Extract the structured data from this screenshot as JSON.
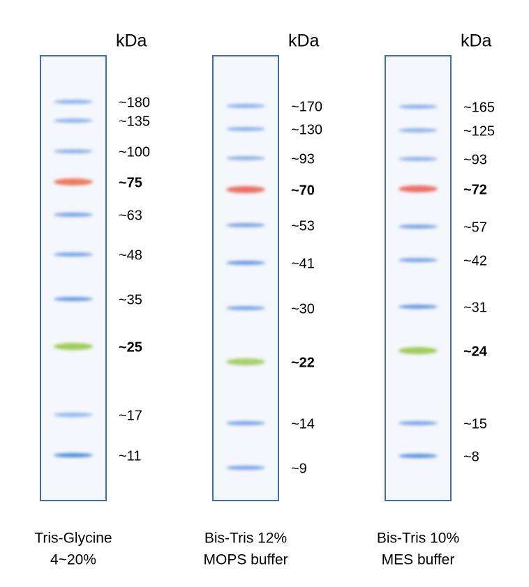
{
  "lanes": [
    {
      "unit": "kDa",
      "caption": [
        "Tris-Glycine",
        "4~20%"
      ],
      "bands": [
        {
          "label": "~180",
          "color": "#8fb3e6",
          "bold": false
        },
        {
          "label": "~135",
          "color": "#8fb3e6",
          "bold": false
        },
        {
          "label": "~100",
          "color": "#8fb3e6",
          "bold": false
        },
        {
          "label": "~75",
          "color": "#ec7a5c",
          "bold": true
        },
        {
          "label": "~63",
          "color": "#7aa5e3",
          "bold": false
        },
        {
          "label": "~48",
          "color": "#7aa5e3",
          "bold": false
        },
        {
          "label": "~35",
          "color": "#6a9ae0",
          "bold": false
        },
        {
          "label": "~25",
          "color": "#9dcc5a",
          "bold": true
        },
        {
          "label": "~17",
          "color": "#8fb8ea",
          "bold": false
        },
        {
          "label": "~11",
          "color": "#4a8ad8",
          "bold": false
        }
      ]
    },
    {
      "unit": "kDa",
      "caption": [
        "Bis-Tris 12%",
        "MOPS buffer"
      ],
      "bands": [
        {
          "label": "~170",
          "color": "#8fb3e6",
          "bold": false
        },
        {
          "label": "~130",
          "color": "#8fb3e6",
          "bold": false
        },
        {
          "label": "~93",
          "color": "#8fb3e6",
          "bold": false
        },
        {
          "label": "~70",
          "color": "#ec7068",
          "bold": true
        },
        {
          "label": "~53",
          "color": "#7aa5e3",
          "bold": false
        },
        {
          "label": "~41",
          "color": "#6a9ae0",
          "bold": false
        },
        {
          "label": "~30",
          "color": "#7aa5e3",
          "bold": false
        },
        {
          "label": "~22",
          "color": "#a6d06a",
          "bold": true
        },
        {
          "label": "~14",
          "color": "#7aa5e3",
          "bold": false
        },
        {
          "label": "~9",
          "color": "#7aa5e3",
          "bold": false
        }
      ]
    },
    {
      "unit": "kDa",
      "caption": [
        "Bis-Tris 10%",
        "MES buffer"
      ],
      "bands": [
        {
          "label": "~165",
          "color": "#8fb3e6",
          "bold": false
        },
        {
          "label": "~125",
          "color": "#8fb3e6",
          "bold": false
        },
        {
          "label": "~93",
          "color": "#8fb3e6",
          "bold": false
        },
        {
          "label": "~72",
          "color": "#ec7068",
          "bold": true
        },
        {
          "label": "~57",
          "color": "#7aa5e3",
          "bold": false
        },
        {
          "label": "~42",
          "color": "#7aa5e3",
          "bold": false
        },
        {
          "label": "~31",
          "color": "#6a9ae0",
          "bold": false
        },
        {
          "label": "~24",
          "color": "#9dcc5a",
          "bold": true
        },
        {
          "label": "~15",
          "color": "#7aa5e3",
          "bold": false
        },
        {
          "label": "~8",
          "color": "#5a92dc",
          "bold": false
        }
      ]
    }
  ]
}
